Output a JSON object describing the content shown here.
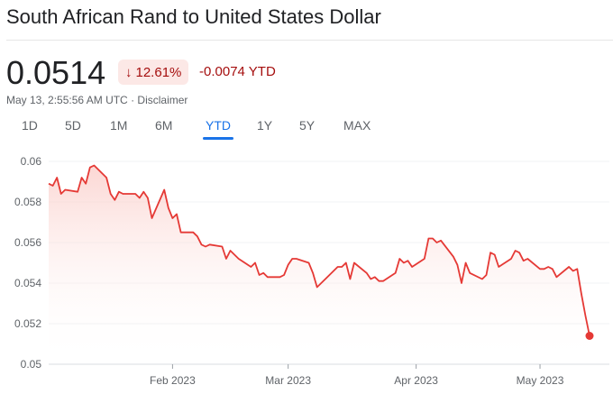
{
  "title": "South African Rand to United States Dollar",
  "price": "0.0514",
  "change": {
    "arrow": "↓",
    "percent": "12.61%",
    "absolute": "-0.0074 YTD"
  },
  "timestamp": "May 13, 2:55:56 AM UTC",
  "separator": " · ",
  "disclaimer": "Disclaimer",
  "tabs": [
    "1D",
    "5D",
    "1M",
    "6M",
    "YTD",
    "1Y",
    "5Y",
    "MAX"
  ],
  "active_tab": "YTD",
  "colors": {
    "line": "#e53935",
    "fill_top": "#fbd0cc",
    "negative": "#a50e0e",
    "accent": "#1a73e8"
  },
  "chart_data": {
    "type": "area",
    "title": "",
    "xlabel": "",
    "ylabel": "",
    "ylim": [
      0.05,
      0.06
    ],
    "yticks": [
      "0.06",
      "0.058",
      "0.056",
      "0.054",
      "0.052",
      "0.05"
    ],
    "ytick_values": [
      0.06,
      0.058,
      0.056,
      0.054,
      0.052,
      0.05
    ],
    "xticks": [
      "Feb 2023",
      "Mar 2023",
      "Apr 2023",
      "May 2023"
    ],
    "xtick_values": [
      "2023-02-01",
      "2023-03-01",
      "2023-04-01",
      "2023-05-01"
    ],
    "xlim": [
      "2023-01-02",
      "2023-05-13"
    ],
    "grid": true,
    "legend": "none",
    "x": [
      "2023-01-02",
      "2023-01-03",
      "2023-01-04",
      "2023-01-05",
      "2023-01-06",
      "2023-01-09",
      "2023-01-10",
      "2023-01-11",
      "2023-01-12",
      "2023-01-13",
      "2023-01-16",
      "2023-01-17",
      "2023-01-18",
      "2023-01-19",
      "2023-01-20",
      "2023-01-23",
      "2023-01-24",
      "2023-01-25",
      "2023-01-26",
      "2023-01-27",
      "2023-01-30",
      "2023-01-31",
      "2023-02-01",
      "2023-02-02",
      "2023-02-03",
      "2023-02-06",
      "2023-02-07",
      "2023-02-08",
      "2023-02-09",
      "2023-02-10",
      "2023-02-13",
      "2023-02-14",
      "2023-02-15",
      "2023-02-16",
      "2023-02-17",
      "2023-02-20",
      "2023-02-21",
      "2023-02-22",
      "2023-02-23",
      "2023-02-24",
      "2023-02-27",
      "2023-02-28",
      "2023-03-01",
      "2023-03-02",
      "2023-03-03",
      "2023-03-06",
      "2023-03-07",
      "2023-03-08",
      "2023-03-09",
      "2023-03-10",
      "2023-03-13",
      "2023-03-14",
      "2023-03-15",
      "2023-03-16",
      "2023-03-17",
      "2023-03-20",
      "2023-03-21",
      "2023-03-22",
      "2023-03-23",
      "2023-03-24",
      "2023-03-27",
      "2023-03-28",
      "2023-03-29",
      "2023-03-30",
      "2023-03-31",
      "2023-04-03",
      "2023-04-04",
      "2023-04-05",
      "2023-04-06",
      "2023-04-07",
      "2023-04-10",
      "2023-04-11",
      "2023-04-12",
      "2023-04-13",
      "2023-04-14",
      "2023-04-17",
      "2023-04-18",
      "2023-04-19",
      "2023-04-20",
      "2023-04-21",
      "2023-04-24",
      "2023-04-25",
      "2023-04-26",
      "2023-04-27",
      "2023-04-28",
      "2023-05-01",
      "2023-05-02",
      "2023-05-03",
      "2023-05-04",
      "2023-05-05",
      "2023-05-08",
      "2023-05-09",
      "2023-05-10",
      "2023-05-11",
      "2023-05-12",
      "2023-05-13"
    ],
    "values": [
      0.0589,
      0.0588,
      0.0592,
      0.0584,
      0.0586,
      0.0585,
      0.0592,
      0.0589,
      0.0597,
      0.0598,
      0.0592,
      0.0584,
      0.0581,
      0.0585,
      0.0584,
      0.0584,
      0.0582,
      0.0585,
      0.0582,
      0.0572,
      0.0586,
      0.0577,
      0.0572,
      0.0574,
      0.0565,
      0.0565,
      0.0563,
      0.0559,
      0.0558,
      0.0559,
      0.0558,
      0.0552,
      0.0556,
      0.0554,
      0.0552,
      0.0548,
      0.055,
      0.0544,
      0.0545,
      0.0543,
      0.0543,
      0.0544,
      0.0549,
      0.0552,
      0.0552,
      0.055,
      0.0545,
      0.0538,
      0.054,
      0.0542,
      0.0548,
      0.0548,
      0.055,
      0.0542,
      0.055,
      0.0545,
      0.0542,
      0.0543,
      0.0541,
      0.0541,
      0.0545,
      0.0552,
      0.055,
      0.0551,
      0.0548,
      0.0552,
      0.0562,
      0.0562,
      0.056,
      0.0561,
      0.0553,
      0.0549,
      0.054,
      0.055,
      0.0545,
      0.0542,
      0.0544,
      0.0555,
      0.0554,
      0.0548,
      0.0552,
      0.0556,
      0.0555,
      0.0551,
      0.0552,
      0.0547,
      0.0547,
      0.0548,
      0.0547,
      0.0543,
      0.0548,
      0.0546,
      0.0547,
      0.0535,
      0.0524,
      0.0514
    ]
  }
}
